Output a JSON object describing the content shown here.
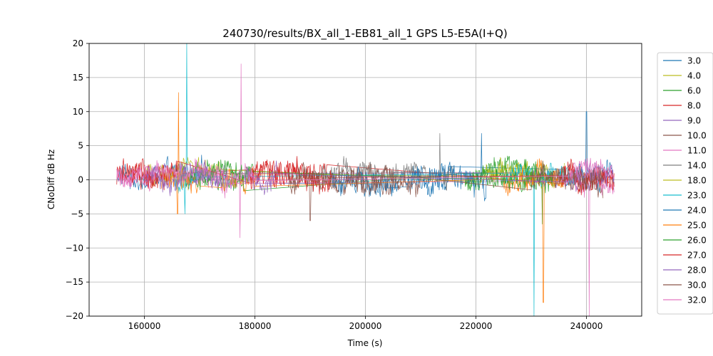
{
  "chart_data": {
    "type": "line",
    "title": "240730/results/BX_all_1-EB81_all_1 GPS L5-E5A(I+Q)",
    "xlabel": "Time (s)",
    "ylabel": "CNoDiff dB Hz",
    "xlim": [
      150000,
      250000
    ],
    "ylim": [
      -20,
      20
    ],
    "x_ticks": [
      160000,
      180000,
      200000,
      220000,
      240000
    ],
    "y_ticks": [
      -20,
      -15,
      -10,
      -5,
      0,
      5,
      10,
      15,
      20
    ],
    "x_tick_labels": [
      "160000",
      "180000",
      "200000",
      "220000",
      "240000"
    ],
    "y_tick_labels": [
      "−20",
      "−15",
      "−10",
      "−5",
      "0",
      "5",
      "10",
      "15",
      "20"
    ],
    "grid": true,
    "legend_position": "outside-right",
    "series": [
      {
        "name": "3.0",
        "color": "#1f77b4",
        "segments": [
          [
            155000,
            172000
          ],
          [
            203000,
            215000
          ],
          [
            236000,
            245000
          ]
        ],
        "noise": 1.4,
        "offset": 0.3,
        "spikes": [
          [
            240000,
            10.0
          ]
        ]
      },
      {
        "name": "4.0",
        "color": "#bcbd22",
        "segments": [
          [
            160000,
            174000
          ],
          [
            222000,
            236000
          ]
        ],
        "noise": 1.2,
        "offset": 0.8,
        "spikes": []
      },
      {
        "name": "6.0",
        "color": "#2ca02c",
        "segments": [
          [
            166000,
            178000
          ],
          [
            218000,
            234000
          ]
        ],
        "noise": 1.5,
        "offset": 0.5,
        "spikes": [
          [
            232000,
            -6.5
          ]
        ]
      },
      {
        "name": "8.0",
        "color": "#d62728",
        "segments": [
          [
            155000,
            165000
          ],
          [
            179000,
            193000
          ],
          [
            236000,
            245000
          ]
        ],
        "noise": 1.6,
        "offset": 0.4,
        "spikes": []
      },
      {
        "name": "9.0",
        "color": "#9467bd",
        "segments": [
          [
            160000,
            175000
          ],
          [
            229000,
            239000
          ]
        ],
        "noise": 1.1,
        "offset": 0.6,
        "spikes": []
      },
      {
        "name": "10.0",
        "color": "#8c564b",
        "segments": [
          [
            186000,
            205000
          ],
          [
            235000,
            243000
          ]
        ],
        "noise": 1.4,
        "offset": -0.3,
        "spikes": [
          [
            190000,
            -6.0
          ]
        ]
      },
      {
        "name": "11.0",
        "color": "#e377c2",
        "segments": [
          [
            155000,
            175000
          ],
          [
            236000,
            245000
          ]
        ],
        "noise": 1.2,
        "offset": 0.2,
        "spikes": [
          [
            177500,
            17.0
          ],
          [
            177300,
            -8.5
          ],
          [
            240500,
            -20.0
          ]
        ]
      },
      {
        "name": "14.0",
        "color": "#7f7f7f",
        "segments": [
          [
            192000,
            216000
          ]
        ],
        "noise": 1.3,
        "offset": 0.9,
        "spikes": [
          [
            213500,
            6.8
          ]
        ]
      },
      {
        "name": "18.0",
        "color": "#bcbd22",
        "segments": [
          [
            163000,
            173000
          ],
          [
            221000,
            233000
          ]
        ],
        "noise": 1.0,
        "offset": 1.1,
        "spikes": []
      },
      {
        "name": "23.0",
        "color": "#17becf",
        "segments": [
          [
            165000,
            170000
          ],
          [
            225000,
            238000
          ]
        ],
        "noise": 1.1,
        "offset": 0.4,
        "spikes": [
          [
            167700,
            20.0
          ],
          [
            167300,
            -5.0
          ],
          [
            230500,
            -20.0
          ]
        ]
      },
      {
        "name": "24.0",
        "color": "#1f77b4",
        "segments": [
          [
            194000,
            204000
          ],
          [
            208000,
            222000
          ]
        ],
        "noise": 1.7,
        "offset": -0.5,
        "spikes": [
          [
            221000,
            6.8
          ]
        ]
      },
      {
        "name": "25.0",
        "color": "#ff7f0e",
        "segments": [
          [
            163000,
            170000
          ],
          [
            174000,
            180000
          ],
          [
            225000,
            236000
          ]
        ],
        "noise": 1.5,
        "offset": -0.2,
        "spikes": [
          [
            166200,
            12.8
          ],
          [
            166000,
            -5.0
          ],
          [
            232200,
            -18.0
          ]
        ]
      },
      {
        "name": "26.0",
        "color": "#2ca02c",
        "segments": [
          [
            168000,
            180000
          ],
          [
            218000,
            234000
          ]
        ],
        "noise": 1.3,
        "offset": 0.7,
        "spikes": []
      },
      {
        "name": "27.0",
        "color": "#d62728",
        "segments": [
          [
            156000,
            166000
          ],
          [
            179000,
            194000
          ],
          [
            235000,
            245000
          ]
        ],
        "noise": 1.5,
        "offset": 0.5,
        "spikes": []
      },
      {
        "name": "28.0",
        "color": "#9467bd",
        "segments": [
          [
            160000,
            176000
          ],
          [
            178000,
            184000
          ],
          [
            238000,
            245000
          ]
        ],
        "noise": 1.2,
        "offset": 0.3,
        "spikes": []
      },
      {
        "name": "30.0",
        "color": "#8c564b",
        "segments": [
          [
            186000,
            210000
          ],
          [
            230000,
            243000
          ]
        ],
        "noise": 1.3,
        "offset": 0.1,
        "spikes": []
      },
      {
        "name": "32.0",
        "color": "#e377c2",
        "segments": [
          [
            155000,
            180000
          ],
          [
            237000,
            245000
          ]
        ],
        "noise": 1.0,
        "offset": 0.6,
        "spikes": []
      }
    ]
  }
}
